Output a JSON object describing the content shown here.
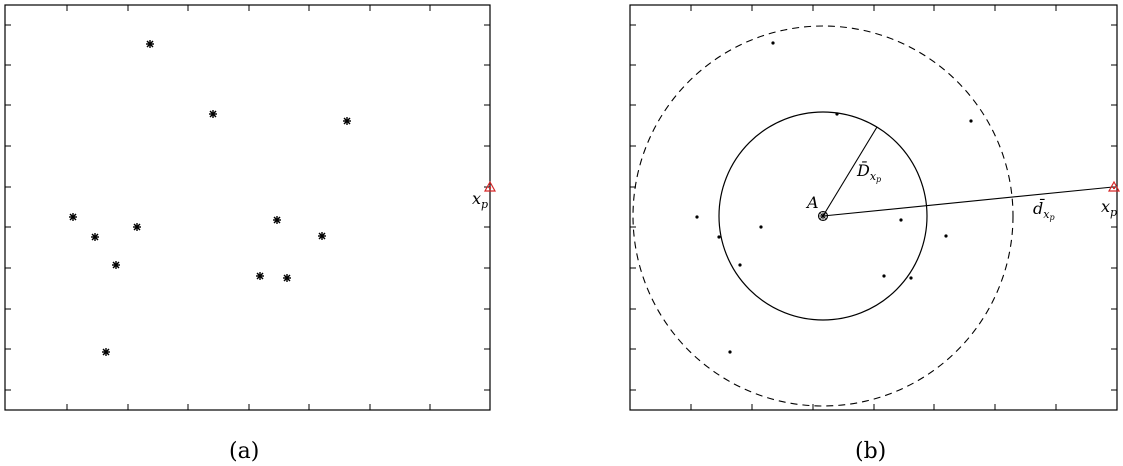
{
  "panel_a": {
    "caption": "(a)",
    "point_label": {
      "base": "x",
      "sub": "p"
    }
  },
  "panel_b": {
    "caption": "(b)",
    "center_label": "A",
    "inner_radius_label": {
      "base": "D̄",
      "sub": "x",
      "subsub": "p"
    },
    "distance_label": {
      "base": "d̄",
      "sub": "x",
      "subsub": "p"
    },
    "point_label": {
      "base": "x",
      "sub": "p"
    }
  },
  "colors": {
    "marker": "#d62728",
    "ink": "#000000"
  }
}
